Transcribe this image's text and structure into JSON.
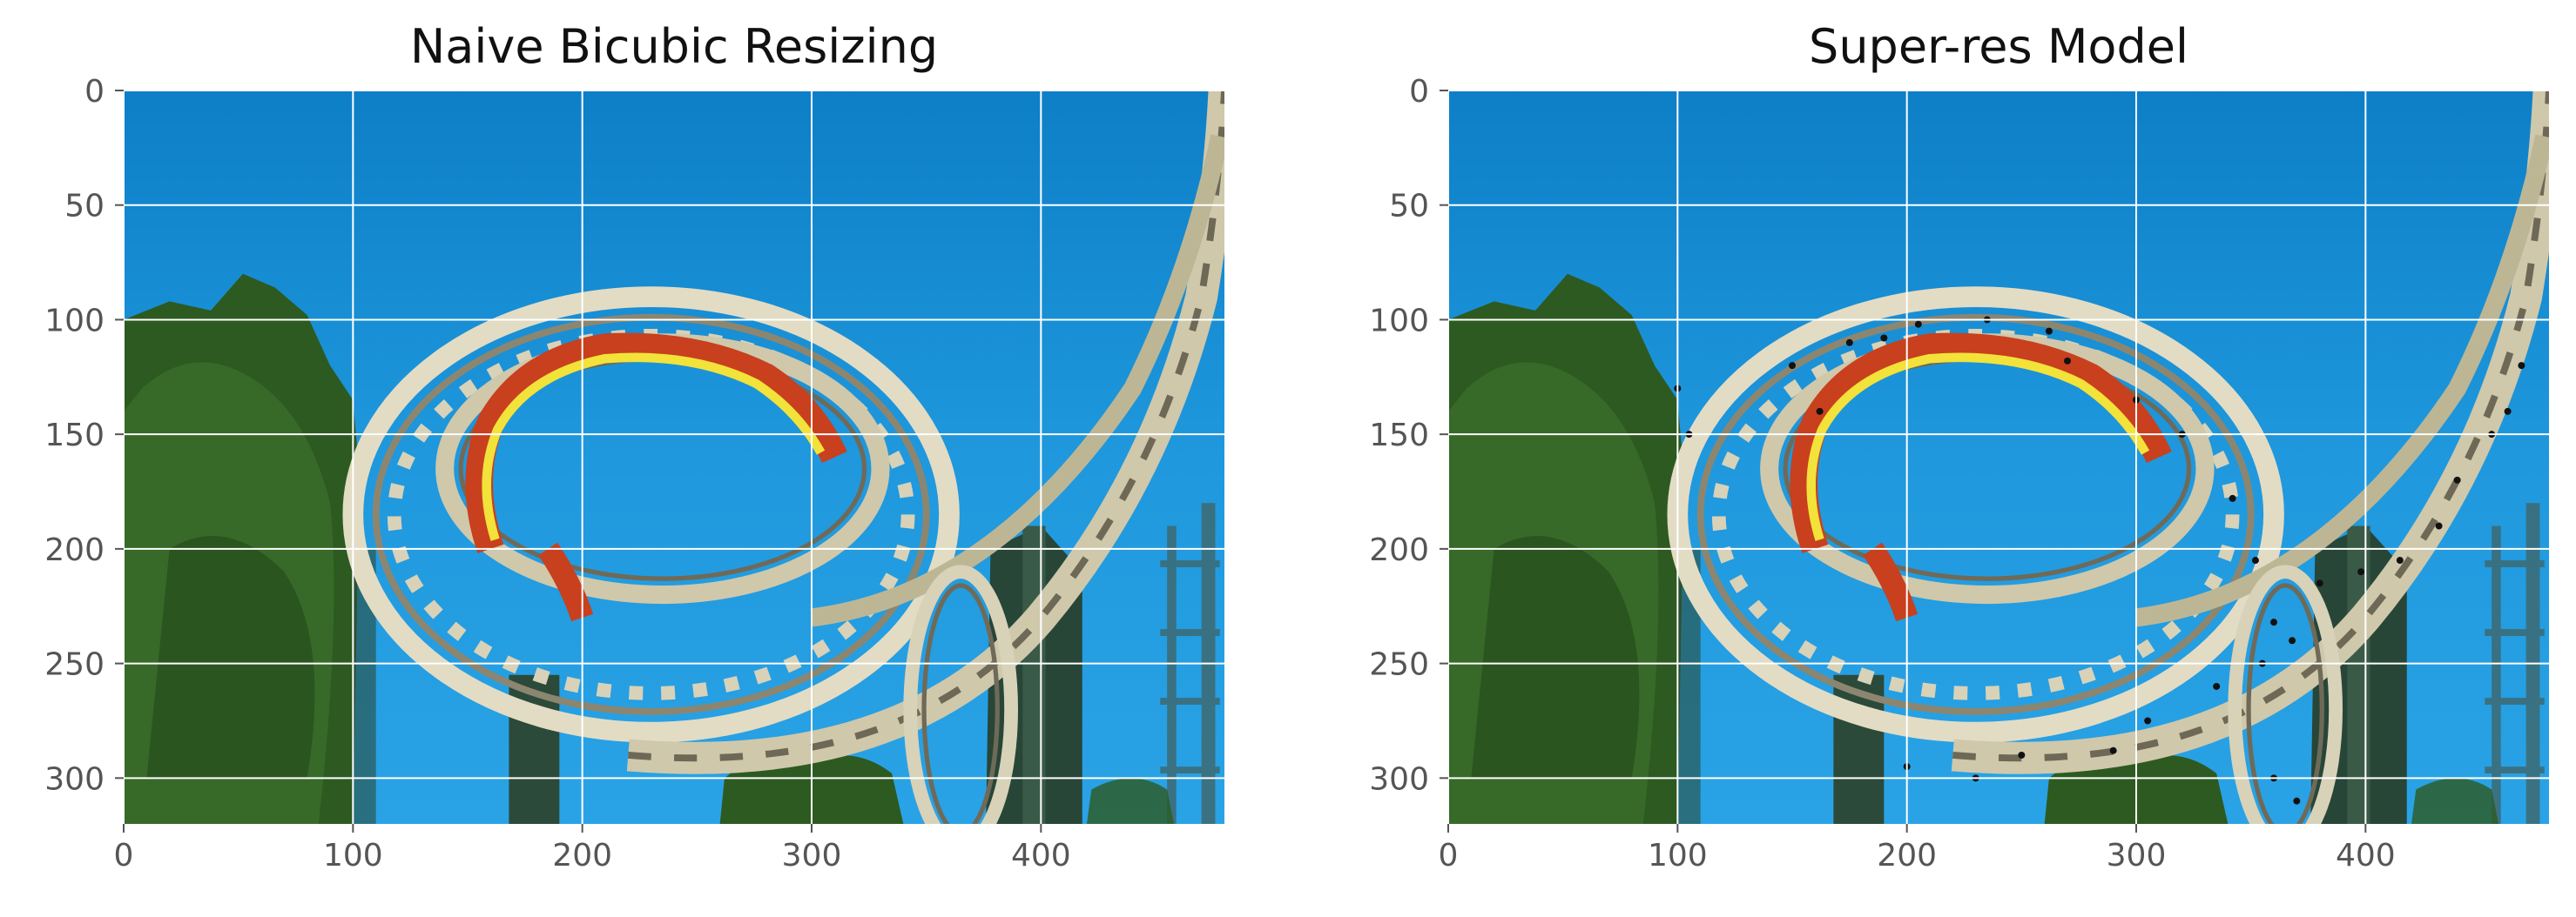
{
  "chart_data": [
    {
      "type": "image",
      "title": "Naive Bicubic Resizing",
      "xlim": [
        0,
        480
      ],
      "ylim": [
        320,
        0
      ],
      "xticks": [
        0,
        100,
        200,
        300,
        400
      ],
      "yticks": [
        0,
        50,
        100,
        150,
        200,
        250,
        300
      ],
      "grid": true
    },
    {
      "type": "image",
      "title": "Super-res Model",
      "xlim": [
        0,
        480
      ],
      "ylim": [
        320,
        0
      ],
      "xticks": [
        0,
        100,
        200,
        300,
        400
      ],
      "yticks": [
        0,
        50,
        100,
        150,
        200,
        250,
        300
      ],
      "grid": true
    }
  ],
  "colors": {
    "sky": "#1f8fd6",
    "tree": "#2f5e24",
    "track": "#d8d2b8",
    "train": "#c8401e",
    "grid": "#ffffff",
    "tick_text": "#555555",
    "title_text": "#111111"
  }
}
